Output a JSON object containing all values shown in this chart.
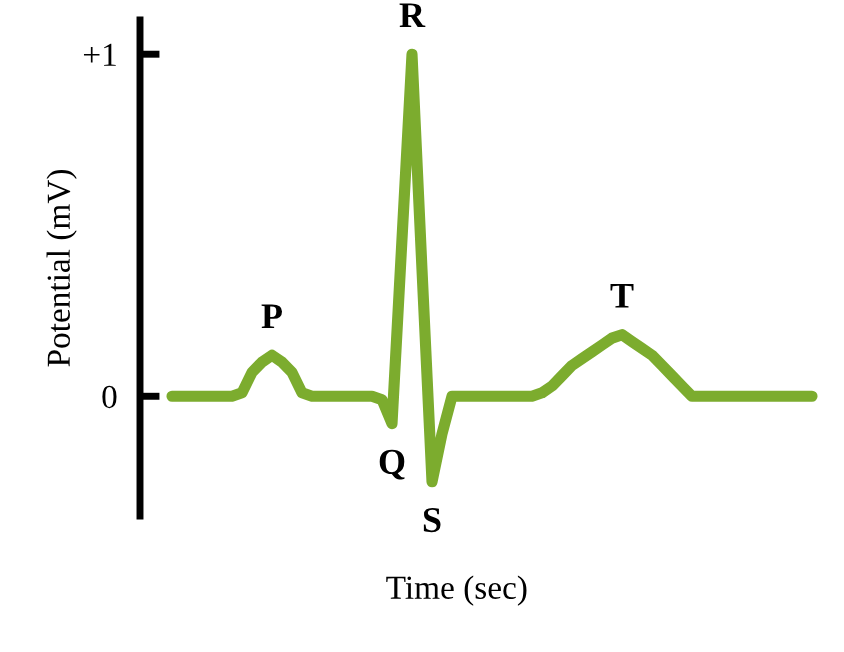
{
  "chart_data": {
    "type": "line",
    "xlabel": "Time (sec)",
    "ylabel": "Potential (mV)",
    "categories": [
      null,
      null,
      null,
      null,
      null,
      null,
      null,
      null,
      null,
      null,
      null,
      null,
      null,
      null,
      null,
      null,
      null,
      null,
      null,
      null,
      null,
      null,
      null,
      null,
      null,
      null,
      null,
      null,
      null,
      null,
      null,
      null,
      null,
      null,
      null,
      null,
      null,
      null,
      null,
      null,
      null,
      null,
      null,
      null,
      null,
      null,
      null,
      null,
      null,
      null,
      null,
      null,
      null,
      null,
      null,
      null,
      null,
      null,
      null,
      null,
      null,
      null,
      null,
      null,
      null
    ],
    "ylim": [
      -0.35,
      1.1
    ],
    "yticks": [
      {
        "value": 0,
        "label": "0"
      },
      {
        "value": 1,
        "label": "+1"
      }
    ],
    "tick_labels": "y",
    "series": [
      {
        "color": "#7cac2e",
        "values": [
          0,
          0,
          0,
          0,
          0,
          0,
          0,
          0.01,
          0.07,
          0.1,
          0.12,
          0.1,
          0.07,
          0.01,
          0,
          0,
          0,
          0,
          0,
          0,
          0,
          -0.01,
          -0.08,
          0.46,
          1,
          0.37,
          -0.25,
          -0.11,
          0,
          0,
          0,
          0,
          0,
          0,
          0,
          0,
          0,
          0.01,
          0.03,
          0.06,
          0.09,
          0.11,
          0.13,
          0.15,
          0.17,
          0.18,
          0.16,
          0.14,
          0.12,
          0.09,
          0.06,
          0.03,
          0,
          0,
          0,
          0,
          0,
          0,
          0,
          0,
          0,
          0,
          0,
          0,
          0
        ]
      }
    ],
    "annotations": [
      "P",
      "Q",
      "R",
      "S",
      "T"
    ]
  }
}
